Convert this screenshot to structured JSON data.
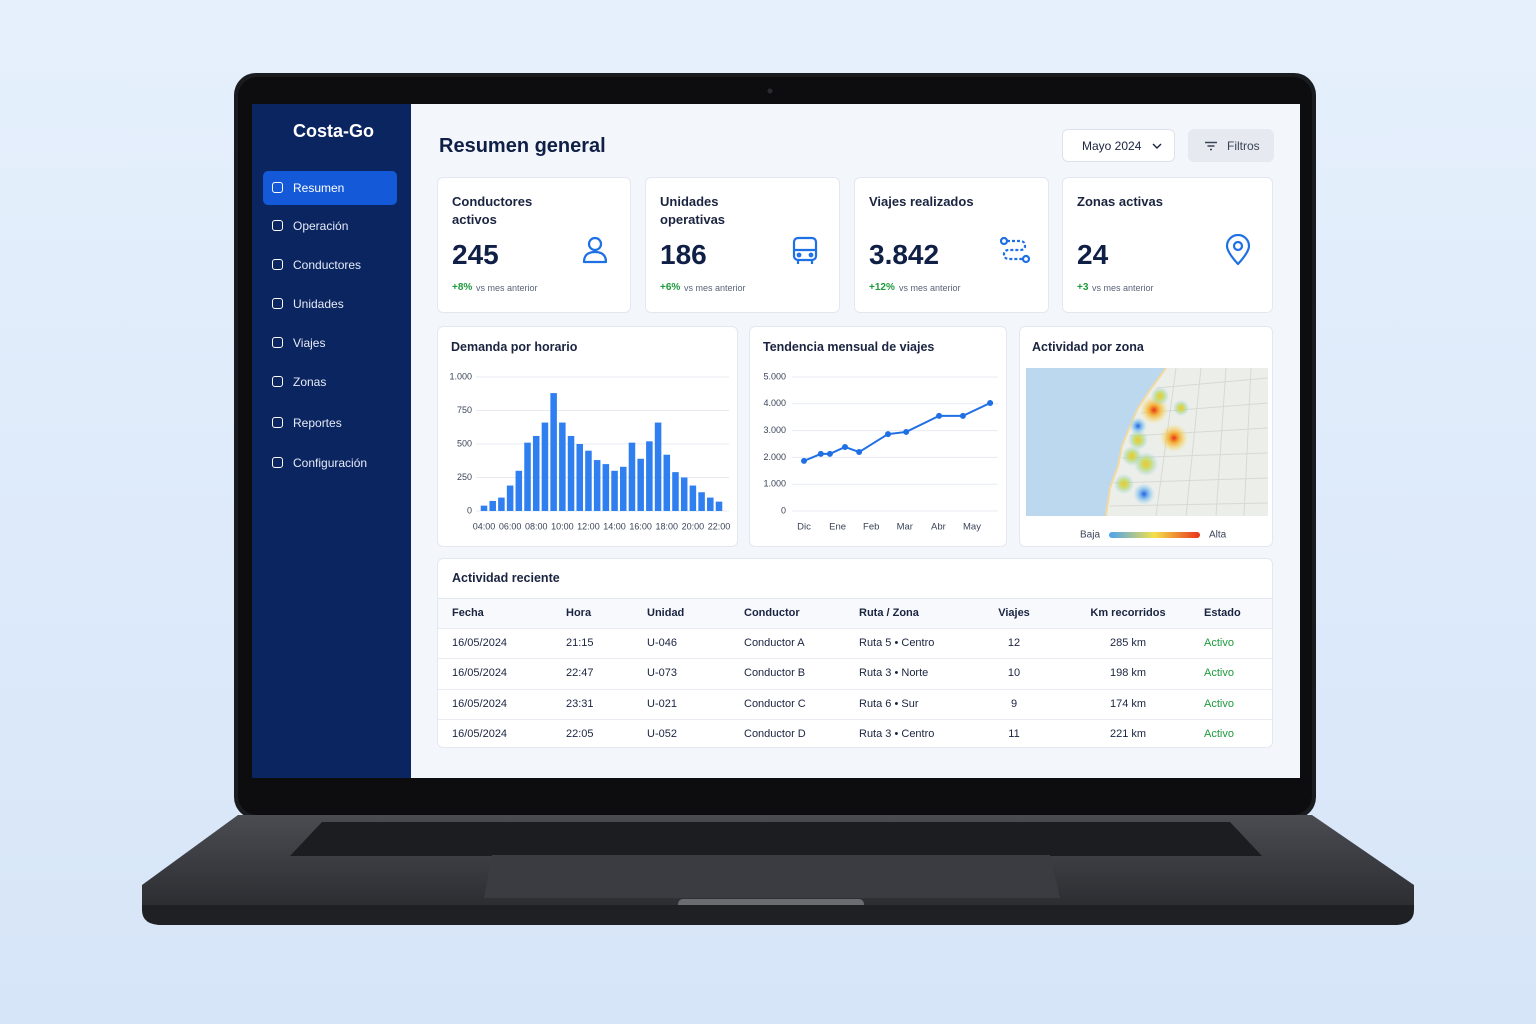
{
  "brand": "Costa-Go",
  "nav": [
    {
      "label": "Resumen",
      "active": true
    },
    {
      "label": "Operación"
    },
    {
      "label": "Conductores"
    },
    {
      "label": "Unidades"
    },
    {
      "label": "Viajes"
    },
    {
      "label": "Zonas"
    },
    {
      "label": "Reportes"
    },
    {
      "label": "Configuración"
    }
  ],
  "header": {
    "title": "Resumen general",
    "period": "Mayo 2024",
    "filters": "Filtros"
  },
  "kpis": [
    {
      "label": "Conductores activos",
      "value": "245",
      "delta": "+8%",
      "note": "vs mes anterior"
    },
    {
      "label": "Unidades operativas",
      "value": "186",
      "delta": "+6%",
      "note": "vs mes anterior"
    },
    {
      "label": "Viajes realizados",
      "value": "3.842",
      "delta": "+12%",
      "note": "vs mes anterior"
    },
    {
      "label": "Zonas activas",
      "value": "24",
      "delta": "+3",
      "note": "vs mes anterior"
    }
  ],
  "chart_data": [
    {
      "type": "bar",
      "title": "Demanda por horario",
      "categories": [
        "04:00",
        null,
        null,
        "06:00",
        null,
        null,
        "08:00",
        null,
        null,
        "10:00",
        null,
        null,
        "12:00",
        null,
        null,
        "14:00",
        null,
        null,
        "16:00",
        null,
        null,
        "18:00",
        null,
        null,
        "20:00",
        null,
        null,
        "22:00"
      ],
      "values": [
        40,
        75,
        100,
        190,
        300,
        510,
        560,
        660,
        880,
        660,
        560,
        500,
        450,
        380,
        350,
        300,
        330,
        510,
        390,
        520,
        660,
        420,
        290,
        250,
        190,
        140,
        100,
        70
      ],
      "color": "#2f7ff0",
      "ylim": [
        0,
        1000
      ],
      "yticks": [
        0,
        250,
        500,
        750,
        {
          "value": 1000,
          "label": "1.000"
        }
      ],
      "grid": true
    },
    {
      "type": "line",
      "title": "Tendencia mensual de viajes",
      "x": [
        0,
        0.5,
        0.77,
        1.22,
        1.64,
        2.5,
        3.04,
        4.02,
        4.73,
        5.54
      ],
      "values": [
        1870,
        2130,
        2130,
        2390,
        2200,
        2870,
        2950,
        3550,
        3550,
        4030
      ],
      "color": "#1f6fe5",
      "xlim": [
        -0.4,
        5.7
      ],
      "xticks": [
        {
          "value": 0,
          "label": "Dic"
        },
        {
          "value": 1,
          "label": "Ene"
        },
        {
          "value": 2,
          "label": "Feb"
        },
        {
          "value": 3,
          "label": "Mar"
        },
        {
          "value": 4,
          "label": "Abr"
        },
        {
          "value": 5,
          "label": "May"
        }
      ],
      "ylim": [
        0,
        5000
      ],
      "yticks": [
        0,
        {
          "value": 1000,
          "label": "1.000"
        },
        {
          "value": 2000,
          "label": "2.000"
        },
        {
          "value": 3000,
          "label": "3.000"
        },
        {
          "value": 4000,
          "label": "4.000"
        },
        {
          "value": 5000,
          "label": "5.000"
        }
      ],
      "grid": true
    }
  ],
  "zone_map": {
    "title": "Actividad por zona",
    "low": "Baja",
    "high": "Alta"
  },
  "table": {
    "title": "Actividad reciente",
    "columns": [
      "Fecha",
      "Hora",
      "Unidad",
      "Conductor",
      "Ruta / Zona",
      "Viajes",
      "Km recorridos",
      "Estado"
    ],
    "rows": [
      [
        "16/05/2024",
        "21:15",
        "U-046",
        "Conductor A",
        "Ruta 5 • Centro",
        "12",
        "285 km",
        "Activo"
      ],
      [
        "16/05/2024",
        "22:47",
        "U-073",
        "Conductor B",
        "Ruta 3 • Norte",
        "10",
        "198 km",
        "Activo"
      ],
      [
        "16/05/2024",
        "23:31",
        "U-021",
        "Conductor C",
        "Ruta 6 • Sur",
        "9",
        "174 km",
        "Activo"
      ],
      [
        "16/05/2024",
        "22:05",
        "U-052",
        "Conductor D",
        "Ruta 3 • Centro",
        "11",
        "221 km",
        "Activo"
      ]
    ]
  }
}
